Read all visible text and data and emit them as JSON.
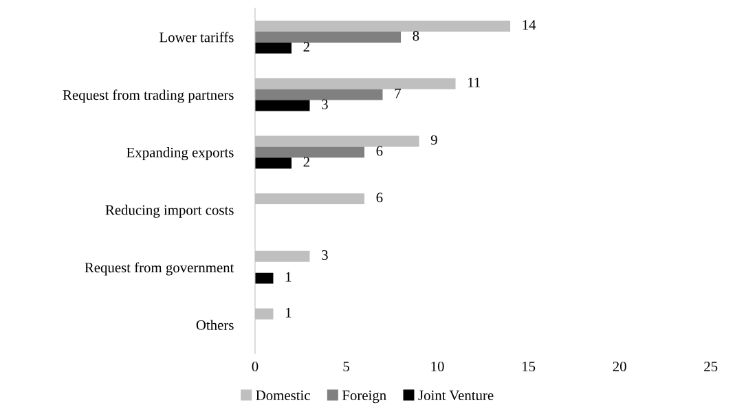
{
  "chart_data": {
    "type": "bar",
    "orientation": "horizontal",
    "categories": [
      "Lower tariffs",
      "Request from trading partners",
      "Expanding exports",
      "Reducing import costs",
      "Request from government",
      "Others"
    ],
    "series": [
      {
        "name": "Domestic",
        "color": "#bfbfbf",
        "values": [
          14,
          11,
          9,
          6,
          3,
          1
        ]
      },
      {
        "name": "Foreign",
        "color": "#808080",
        "values": [
          8,
          7,
          6,
          null,
          null,
          null
        ]
      },
      {
        "name": "Joint Venture",
        "color": "#000000",
        "values": [
          2,
          3,
          2,
          null,
          1,
          null
        ]
      }
    ],
    "xlim": [
      0,
      25
    ],
    "xticks": [
      0,
      5,
      10,
      15,
      20,
      25
    ],
    "data_labels": true,
    "grid": false,
    "legend": "bottom"
  }
}
